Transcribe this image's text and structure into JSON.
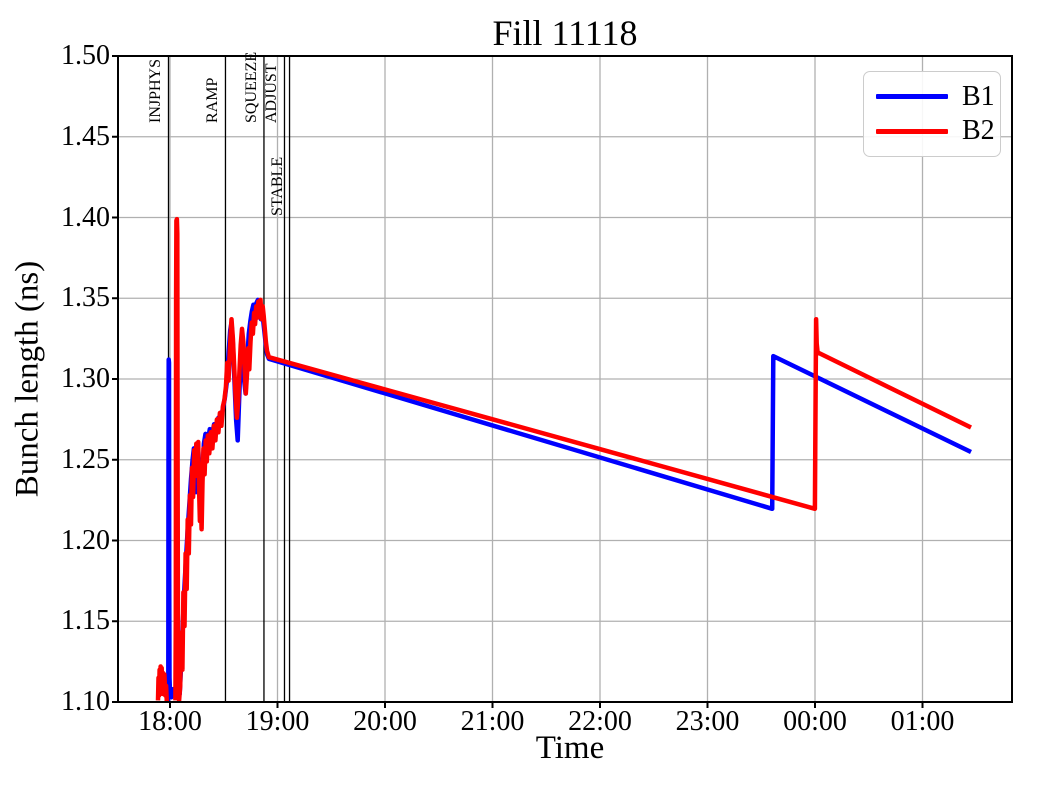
{
  "figure": {
    "title": "Fill 11118",
    "xlabel": "Time",
    "ylabel": "Bunch length (ns)"
  },
  "legend": {
    "position": "upper right",
    "items": [
      {
        "label": "B1",
        "color": "#0000ff"
      },
      {
        "label": "B2",
        "color": "#ff0000"
      }
    ]
  },
  "colors": {
    "b1": "#0000ff",
    "b2": "#ff0000",
    "grid": "#b0b0b0",
    "spine": "#000000",
    "mode_line": "#000000",
    "background": "#ffffff"
  },
  "chart_data": {
    "type": "line",
    "title": "Fill 11118",
    "xlabel": "Time",
    "ylabel": "Bunch length (ns)",
    "x_unit": "hours relative to 18:00",
    "xlim": [
      -0.4837,
      7.8326
    ],
    "ylim": [
      1.1,
      1.5
    ],
    "grid": true,
    "legend_position": "upper right",
    "xticks": [
      {
        "t": 0,
        "label": "18:00"
      },
      {
        "t": 1,
        "label": "19:00"
      },
      {
        "t": 2,
        "label": "20:00"
      },
      {
        "t": 3,
        "label": "21:00"
      },
      {
        "t": 4,
        "label": "22:00"
      },
      {
        "t": 5,
        "label": "23:00"
      },
      {
        "t": 6,
        "label": "00:00"
      },
      {
        "t": 7,
        "label": "01:00"
      }
    ],
    "yticks": [
      1.1,
      1.15,
      1.2,
      1.25,
      1.3,
      1.35,
      1.4,
      1.45,
      1.5
    ],
    "beam_modes": [
      {
        "label": "INJPHYS",
        "t": -0.014,
        "row": "top"
      },
      {
        "label": "RAMP",
        "t": 0.516,
        "row": "top"
      },
      {
        "label": "SQUEEZE",
        "t": 0.874,
        "row": "top"
      },
      {
        "label": "ADJUST",
        "t": 1.065,
        "row": "top"
      },
      {
        "label": "STABLE",
        "t": 1.112,
        "row": "lower"
      }
    ],
    "series": [
      {
        "name": "B1",
        "color": "#0000ff",
        "segments": [
          [
            [
              -0.019,
              1.1
            ],
            [
              -0.016,
              1.105
            ],
            [
              -0.014,
              1.25
            ],
            [
              -0.012,
              1.312
            ],
            [
              -0.009,
              1.31
            ],
            [
              -0.007,
              1.18
            ],
            [
              -0.005,
              1.115
            ],
            [
              0.0,
              1.106
            ],
            [
              0.015,
              1.103
            ],
            [
              0.03,
              1.108
            ],
            [
              0.045,
              1.104
            ],
            [
              0.06,
              1.108
            ],
            [
              0.075,
              1.103
            ],
            [
              0.09,
              1.105
            ],
            [
              0.105,
              1.125
            ],
            [
              0.12,
              1.15
            ],
            [
              0.135,
              1.172
            ],
            [
              0.15,
              1.19
            ],
            [
              0.165,
              1.207
            ],
            [
              0.18,
              1.222
            ],
            [
              0.195,
              1.238
            ],
            [
              0.21,
              1.25
            ],
            [
              0.222,
              1.257
            ],
            [
              0.232,
              1.248
            ],
            [
              0.242,
              1.23
            ],
            [
              0.252,
              1.242
            ],
            [
              0.262,
              1.256
            ],
            [
              0.272,
              1.246
            ],
            [
              0.282,
              1.23
            ],
            [
              0.292,
              1.222
            ],
            [
              0.302,
              1.242
            ],
            [
              0.315,
              1.26
            ],
            [
              0.33,
              1.266
            ],
            [
              0.35,
              1.261
            ],
            [
              0.37,
              1.269
            ],
            [
              0.39,
              1.265
            ],
            [
              0.41,
              1.272
            ],
            [
              0.43,
              1.269
            ],
            [
              0.45,
              1.276
            ],
            [
              0.47,
              1.273
            ],
            [
              0.49,
              1.281
            ],
            [
              0.51,
              1.288
            ],
            [
              0.528,
              1.298
            ],
            [
              0.545,
              1.316
            ],
            [
              0.56,
              1.33
            ],
            [
              0.572,
              1.335
            ],
            [
              0.585,
              1.322
            ],
            [
              0.6,
              1.298
            ],
            [
              0.615,
              1.275
            ],
            [
              0.63,
              1.262
            ],
            [
              0.645,
              1.29
            ],
            [
              0.66,
              1.318
            ],
            [
              0.672,
              1.312
            ],
            [
              0.688,
              1.3
            ],
            [
              0.703,
              1.291
            ],
            [
              0.718,
              1.312
            ],
            [
              0.733,
              1.328
            ],
            [
              0.748,
              1.336
            ],
            [
              0.762,
              1.342
            ],
            [
              0.776,
              1.346
            ],
            [
              0.79,
              1.341
            ],
            [
              0.804,
              1.347
            ],
            [
              0.818,
              1.349
            ],
            [
              0.832,
              1.343
            ],
            [
              0.846,
              1.337
            ],
            [
              0.86,
              1.341
            ],
            [
              0.875,
              1.331
            ],
            [
              0.89,
              1.322
            ],
            [
              0.902,
              1.3155
            ],
            [
              0.92,
              1.3125
            ],
            [
              5.602,
              1.2196
            ],
            [
              5.612,
              1.3142
            ],
            [
              7.451,
              1.2548
            ]
          ]
        ]
      },
      {
        "name": "B2",
        "color": "#ff0000",
        "segments": [
          [
            [
              -0.112,
              1.101
            ],
            [
              -0.107,
              1.115
            ],
            [
              -0.102,
              1.104
            ],
            [
              -0.097,
              1.12
            ],
            [
              -0.092,
              1.106
            ],
            [
              -0.087,
              1.122
            ],
            [
              -0.082,
              1.108
            ],
            [
              -0.077,
              1.121
            ],
            [
              -0.072,
              1.105
            ],
            [
              -0.067,
              1.118
            ],
            [
              -0.06,
              1.11
            ],
            [
              -0.052,
              1.117
            ],
            [
              -0.044,
              1.104
            ],
            [
              -0.036,
              1.11
            ],
            [
              -0.03,
              1.1
            ]
          ],
          [
            [
              0.05,
              1.101
            ],
            [
              0.054,
              1.15
            ],
            [
              0.057,
              1.35
            ],
            [
              0.06,
              1.398
            ],
            [
              0.064,
              1.399
            ],
            [
              0.068,
              1.39
            ],
            [
              0.071,
              1.25
            ],
            [
              0.074,
              1.12
            ],
            [
              0.078,
              1.104
            ],
            [
              0.085,
              1.101
            ],
            [
              0.095,
              1.11
            ],
            [
              0.105,
              1.143
            ],
            [
              0.115,
              1.12
            ],
            [
              0.125,
              1.168
            ],
            [
              0.135,
              1.147
            ],
            [
              0.145,
              1.192
            ],
            [
              0.155,
              1.17
            ],
            [
              0.165,
              1.213
            ],
            [
              0.175,
              1.192
            ],
            [
              0.185,
              1.228
            ],
            [
              0.195,
              1.21
            ],
            [
              0.205,
              1.245
            ],
            [
              0.215,
              1.227
            ],
            [
              0.225,
              1.256
            ],
            [
              0.235,
              1.24
            ],
            [
              0.245,
              1.26
            ],
            [
              0.255,
              1.246
            ],
            [
              0.262,
              1.261
            ],
            [
              0.27,
              1.234
            ],
            [
              0.278,
              1.212
            ],
            [
              0.286,
              1.226
            ],
            [
              0.294,
              1.207
            ],
            [
              0.302,
              1.236
            ],
            [
              0.312,
              1.257
            ],
            [
              0.322,
              1.241
            ],
            [
              0.332,
              1.262
            ],
            [
              0.342,
              1.249
            ],
            [
              0.352,
              1.265
            ],
            [
              0.366,
              1.254
            ],
            [
              0.38,
              1.267
            ],
            [
              0.394,
              1.257
            ],
            [
              0.408,
              1.271
            ],
            [
              0.422,
              1.262
            ],
            [
              0.436,
              1.275
            ],
            [
              0.45,
              1.267
            ],
            [
              0.464,
              1.279
            ],
            [
              0.478,
              1.271
            ],
            [
              0.492,
              1.283
            ],
            [
              0.506,
              1.287
            ],
            [
              0.52,
              1.295
            ],
            [
              0.532,
              1.31
            ],
            [
              0.544,
              1.299
            ],
            [
              0.558,
              1.32
            ],
            [
              0.572,
              1.337
            ],
            [
              0.585,
              1.325
            ],
            [
              0.598,
              1.306
            ],
            [
              0.61,
              1.289
            ],
            [
              0.622,
              1.276
            ],
            [
              0.634,
              1.286
            ],
            [
              0.646,
              1.304
            ],
            [
              0.658,
              1.321
            ],
            [
              0.67,
              1.331
            ],
            [
              0.682,
              1.323
            ],
            [
              0.694,
              1.306
            ],
            [
              0.705,
              1.291
            ],
            [
              0.716,
              1.303
            ],
            [
              0.727,
              1.319
            ],
            [
              0.738,
              1.306
            ],
            [
              0.749,
              1.323
            ],
            [
              0.76,
              1.335
            ],
            [
              0.771,
              1.328
            ],
            [
              0.782,
              1.341
            ],
            [
              0.792,
              1.334
            ],
            [
              0.802,
              1.345
            ],
            [
              0.812,
              1.338
            ],
            [
              0.822,
              1.348
            ],
            [
              0.832,
              1.341
            ],
            [
              0.842,
              1.349
            ],
            [
              0.852,
              1.337
            ],
            [
              0.862,
              1.345
            ],
            [
              0.872,
              1.339
            ],
            [
              0.882,
              1.331
            ],
            [
              0.892,
              1.323
            ],
            [
              0.902,
              1.3175
            ],
            [
              0.92,
              1.3135
            ],
            [
              5.999,
              1.2196
            ],
            [
              6.006,
              1.29
            ],
            [
              6.01,
              1.337
            ],
            [
              6.016,
              1.322
            ],
            [
              6.024,
              1.3165
            ],
            [
              7.451,
              1.27
            ]
          ]
        ]
      }
    ]
  }
}
